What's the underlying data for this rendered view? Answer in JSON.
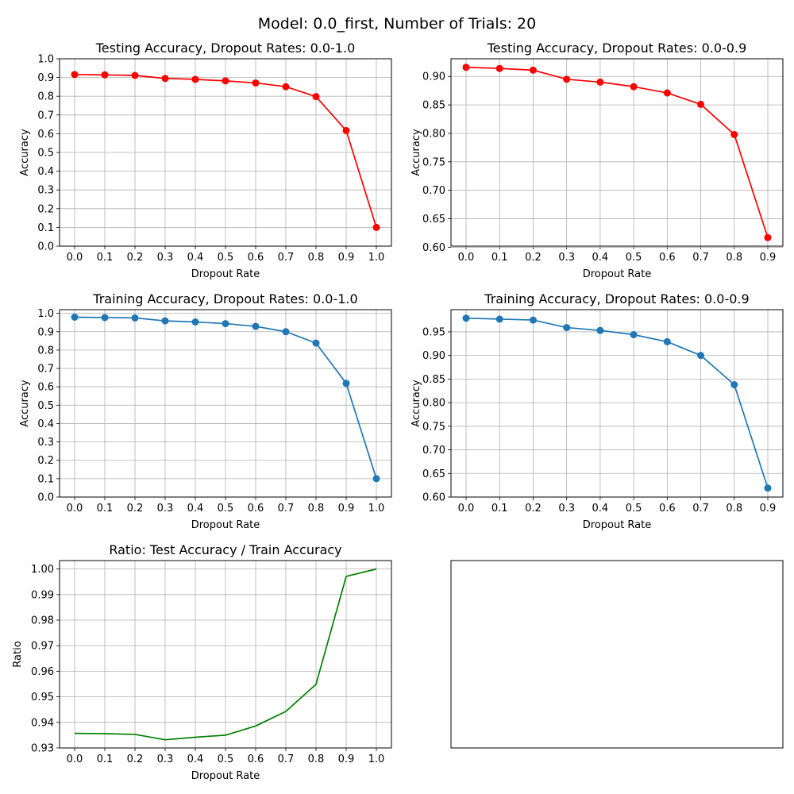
{
  "figure": {
    "suptitle": "Model: 0.0_first, Number of Trials: 20"
  },
  "chart_data": [
    {
      "id": "test-full",
      "type": "line",
      "markers": true,
      "color": "#ff0000",
      "title": "Testing Accuracy, Dropout Rates: 0.0-1.0",
      "xlabel": "Dropout Rate",
      "ylabel": "Accuracy",
      "xlim": [
        -0.05,
        1.05
      ],
      "ylim": [
        0.0,
        1.0
      ],
      "grid": true,
      "xticks": [
        "0.0",
        "0.1",
        "0.2",
        "0.3",
        "0.4",
        "0.5",
        "0.6",
        "0.7",
        "0.8",
        "0.9",
        "1.0"
      ],
      "yticks": [
        "0.0",
        "0.1",
        "0.2",
        "0.3",
        "0.4",
        "0.5",
        "0.6",
        "0.7",
        "0.8",
        "0.9",
        "1.0"
      ],
      "series": [
        {
          "x": [
            0.0,
            0.1,
            0.2,
            0.3,
            0.4,
            0.5,
            0.6,
            0.7,
            0.8,
            0.9,
            1.0
          ],
          "y": [
            0.916,
            0.914,
            0.911,
            0.895,
            0.89,
            0.882,
            0.871,
            0.851,
            0.798,
            0.617,
            0.1
          ]
        }
      ]
    },
    {
      "id": "test-09",
      "type": "line",
      "markers": true,
      "color": "#ff0000",
      "title": "Testing Accuracy, Dropout Rates: 0.0-0.9",
      "xlabel": "Dropout Rate",
      "ylabel": "Accuracy",
      "xlim": [
        -0.045,
        0.945
      ],
      "ylim": [
        0.602,
        0.931
      ],
      "grid": true,
      "xticks": [
        "0.0",
        "0.1",
        "0.2",
        "0.3",
        "0.4",
        "0.5",
        "0.6",
        "0.7",
        "0.8",
        "0.9"
      ],
      "yticks": [
        "0.60",
        "0.65",
        "0.70",
        "0.75",
        "0.80",
        "0.85",
        "0.90"
      ],
      "series": [
        {
          "x": [
            0.0,
            0.1,
            0.2,
            0.3,
            0.4,
            0.5,
            0.6,
            0.7,
            0.8,
            0.9
          ],
          "y": [
            0.916,
            0.914,
            0.911,
            0.895,
            0.89,
            0.882,
            0.871,
            0.851,
            0.798,
            0.617
          ]
        }
      ]
    },
    {
      "id": "train-full",
      "type": "line",
      "markers": true,
      "color": "#1f77b4",
      "title": "Training Accuracy, Dropout Rates: 0.0-1.0",
      "xlabel": "Dropout Rate",
      "ylabel": "Accuracy",
      "xlim": [
        -0.05,
        1.05
      ],
      "ylim": [
        0.0,
        1.02
      ],
      "grid": true,
      "xticks": [
        "0.0",
        "0.1",
        "0.2",
        "0.3",
        "0.4",
        "0.5",
        "0.6",
        "0.7",
        "0.8",
        "0.9",
        "1.0"
      ],
      "yticks": [
        "0.0",
        "0.1",
        "0.2",
        "0.3",
        "0.4",
        "0.5",
        "0.6",
        "0.7",
        "0.8",
        "0.9",
        "1.0"
      ],
      "series": [
        {
          "x": [
            0.0,
            0.1,
            0.2,
            0.3,
            0.4,
            0.5,
            0.6,
            0.7,
            0.8,
            0.9,
            1.0
          ],
          "y": [
            0.979,
            0.977,
            0.975,
            0.959,
            0.953,
            0.944,
            0.929,
            0.9,
            0.838,
            0.619,
            0.1
          ]
        }
      ]
    },
    {
      "id": "train-09",
      "type": "line",
      "markers": true,
      "color": "#1f77b4",
      "title": "Training Accuracy, Dropout Rates: 0.0-0.9",
      "xlabel": "Dropout Rate",
      "ylabel": "Accuracy",
      "xlim": [
        -0.045,
        0.945
      ],
      "ylim": [
        0.6,
        0.997
      ],
      "grid": true,
      "xticks": [
        "0.0",
        "0.1",
        "0.2",
        "0.3",
        "0.4",
        "0.5",
        "0.6",
        "0.7",
        "0.8",
        "0.9"
      ],
      "yticks": [
        "0.60",
        "0.65",
        "0.70",
        "0.75",
        "0.80",
        "0.85",
        "0.90",
        "0.95"
      ],
      "series": [
        {
          "x": [
            0.0,
            0.1,
            0.2,
            0.3,
            0.4,
            0.5,
            0.6,
            0.7,
            0.8,
            0.9
          ],
          "y": [
            0.979,
            0.977,
            0.975,
            0.959,
            0.953,
            0.944,
            0.929,
            0.9,
            0.838,
            0.619
          ]
        }
      ]
    },
    {
      "id": "ratio",
      "type": "line",
      "markers": false,
      "color": "#008000",
      "title": "Ratio: Test Accuracy / Train Accuracy",
      "xlabel": "Dropout Rate",
      "ylabel": "Ratio",
      "xlim": [
        -0.05,
        1.05
      ],
      "ylim": [
        0.93,
        1.0033
      ],
      "grid": true,
      "xticks": [
        "0.0",
        "0.1",
        "0.2",
        "0.3",
        "0.4",
        "0.5",
        "0.6",
        "0.7",
        "0.8",
        "0.9",
        "1.0"
      ],
      "yticks": [
        "0.93",
        "0.94",
        "0.95",
        "0.96",
        "0.97",
        "0.98",
        "0.99",
        "1.00"
      ],
      "series": [
        {
          "x": [
            0.0,
            0.1,
            0.2,
            0.3,
            0.4,
            0.5,
            0.6,
            0.7,
            0.8,
            0.9,
            1.0
          ],
          "y": [
            0.9357,
            0.9356,
            0.9353,
            0.9332,
            0.9342,
            0.935,
            0.9386,
            0.9443,
            0.9549,
            0.9971,
            1.0
          ]
        }
      ]
    },
    {
      "id": "empty",
      "type": "line",
      "title": "",
      "xlabel": "",
      "ylabel": "",
      "xticks": [],
      "yticks": [],
      "grid": false,
      "series": []
    }
  ]
}
